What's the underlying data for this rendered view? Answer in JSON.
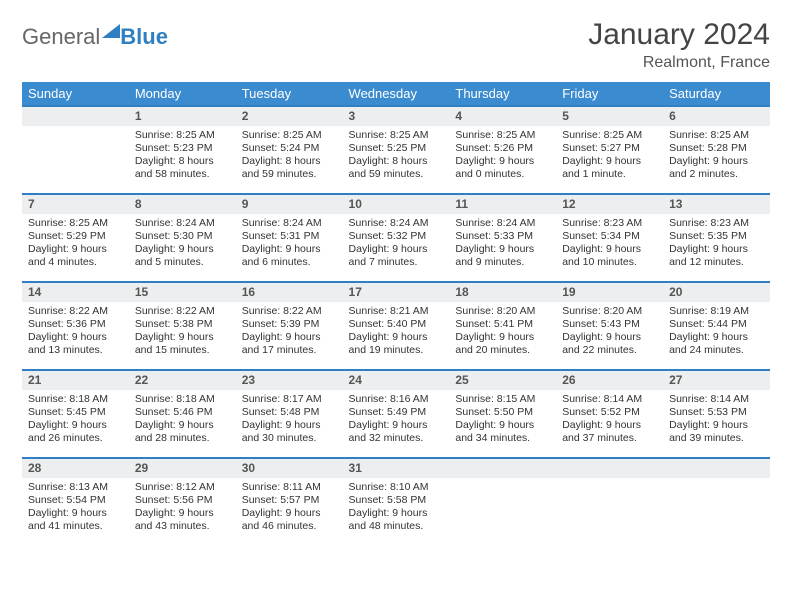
{
  "logo": {
    "text1": "General",
    "text2": "Blue"
  },
  "title": "January 2024",
  "location": "Realmont, France",
  "colors": {
    "header_bg": "#3b8bd0",
    "header_border": "#2f7fc2",
    "daynum_bg": "#eceeef",
    "text": "#333333"
  },
  "weekdays": [
    "Sunday",
    "Monday",
    "Tuesday",
    "Wednesday",
    "Thursday",
    "Friday",
    "Saturday"
  ],
  "weeks": [
    {
      "nums": [
        "",
        "1",
        "2",
        "3",
        "4",
        "5",
        "6"
      ],
      "details": [
        null,
        {
          "sunrise": "Sunrise: 8:25 AM",
          "sunset": "Sunset: 5:23 PM",
          "daylight": "Daylight: 8 hours and 58 minutes."
        },
        {
          "sunrise": "Sunrise: 8:25 AM",
          "sunset": "Sunset: 5:24 PM",
          "daylight": "Daylight: 8 hours and 59 minutes."
        },
        {
          "sunrise": "Sunrise: 8:25 AM",
          "sunset": "Sunset: 5:25 PM",
          "daylight": "Daylight: 8 hours and 59 minutes."
        },
        {
          "sunrise": "Sunrise: 8:25 AM",
          "sunset": "Sunset: 5:26 PM",
          "daylight": "Daylight: 9 hours and 0 minutes."
        },
        {
          "sunrise": "Sunrise: 8:25 AM",
          "sunset": "Sunset: 5:27 PM",
          "daylight": "Daylight: 9 hours and 1 minute."
        },
        {
          "sunrise": "Sunrise: 8:25 AM",
          "sunset": "Sunset: 5:28 PM",
          "daylight": "Daylight: 9 hours and 2 minutes."
        }
      ]
    },
    {
      "nums": [
        "7",
        "8",
        "9",
        "10",
        "11",
        "12",
        "13"
      ],
      "details": [
        {
          "sunrise": "Sunrise: 8:25 AM",
          "sunset": "Sunset: 5:29 PM",
          "daylight": "Daylight: 9 hours and 4 minutes."
        },
        {
          "sunrise": "Sunrise: 8:24 AM",
          "sunset": "Sunset: 5:30 PM",
          "daylight": "Daylight: 9 hours and 5 minutes."
        },
        {
          "sunrise": "Sunrise: 8:24 AM",
          "sunset": "Sunset: 5:31 PM",
          "daylight": "Daylight: 9 hours and 6 minutes."
        },
        {
          "sunrise": "Sunrise: 8:24 AM",
          "sunset": "Sunset: 5:32 PM",
          "daylight": "Daylight: 9 hours and 7 minutes."
        },
        {
          "sunrise": "Sunrise: 8:24 AM",
          "sunset": "Sunset: 5:33 PM",
          "daylight": "Daylight: 9 hours and 9 minutes."
        },
        {
          "sunrise": "Sunrise: 8:23 AM",
          "sunset": "Sunset: 5:34 PM",
          "daylight": "Daylight: 9 hours and 10 minutes."
        },
        {
          "sunrise": "Sunrise: 8:23 AM",
          "sunset": "Sunset: 5:35 PM",
          "daylight": "Daylight: 9 hours and 12 minutes."
        }
      ]
    },
    {
      "nums": [
        "14",
        "15",
        "16",
        "17",
        "18",
        "19",
        "20"
      ],
      "details": [
        {
          "sunrise": "Sunrise: 8:22 AM",
          "sunset": "Sunset: 5:36 PM",
          "daylight": "Daylight: 9 hours and 13 minutes."
        },
        {
          "sunrise": "Sunrise: 8:22 AM",
          "sunset": "Sunset: 5:38 PM",
          "daylight": "Daylight: 9 hours and 15 minutes."
        },
        {
          "sunrise": "Sunrise: 8:22 AM",
          "sunset": "Sunset: 5:39 PM",
          "daylight": "Daylight: 9 hours and 17 minutes."
        },
        {
          "sunrise": "Sunrise: 8:21 AM",
          "sunset": "Sunset: 5:40 PM",
          "daylight": "Daylight: 9 hours and 19 minutes."
        },
        {
          "sunrise": "Sunrise: 8:20 AM",
          "sunset": "Sunset: 5:41 PM",
          "daylight": "Daylight: 9 hours and 20 minutes."
        },
        {
          "sunrise": "Sunrise: 8:20 AM",
          "sunset": "Sunset: 5:43 PM",
          "daylight": "Daylight: 9 hours and 22 minutes."
        },
        {
          "sunrise": "Sunrise: 8:19 AM",
          "sunset": "Sunset: 5:44 PM",
          "daylight": "Daylight: 9 hours and 24 minutes."
        }
      ]
    },
    {
      "nums": [
        "21",
        "22",
        "23",
        "24",
        "25",
        "26",
        "27"
      ],
      "details": [
        {
          "sunrise": "Sunrise: 8:18 AM",
          "sunset": "Sunset: 5:45 PM",
          "daylight": "Daylight: 9 hours and 26 minutes."
        },
        {
          "sunrise": "Sunrise: 8:18 AM",
          "sunset": "Sunset: 5:46 PM",
          "daylight": "Daylight: 9 hours and 28 minutes."
        },
        {
          "sunrise": "Sunrise: 8:17 AM",
          "sunset": "Sunset: 5:48 PM",
          "daylight": "Daylight: 9 hours and 30 minutes."
        },
        {
          "sunrise": "Sunrise: 8:16 AM",
          "sunset": "Sunset: 5:49 PM",
          "daylight": "Daylight: 9 hours and 32 minutes."
        },
        {
          "sunrise": "Sunrise: 8:15 AM",
          "sunset": "Sunset: 5:50 PM",
          "daylight": "Daylight: 9 hours and 34 minutes."
        },
        {
          "sunrise": "Sunrise: 8:14 AM",
          "sunset": "Sunset: 5:52 PM",
          "daylight": "Daylight: 9 hours and 37 minutes."
        },
        {
          "sunrise": "Sunrise: 8:14 AM",
          "sunset": "Sunset: 5:53 PM",
          "daylight": "Daylight: 9 hours and 39 minutes."
        }
      ]
    },
    {
      "nums": [
        "28",
        "29",
        "30",
        "31",
        "",
        "",
        ""
      ],
      "details": [
        {
          "sunrise": "Sunrise: 8:13 AM",
          "sunset": "Sunset: 5:54 PM",
          "daylight": "Daylight: 9 hours and 41 minutes."
        },
        {
          "sunrise": "Sunrise: 8:12 AM",
          "sunset": "Sunset: 5:56 PM",
          "daylight": "Daylight: 9 hours and 43 minutes."
        },
        {
          "sunrise": "Sunrise: 8:11 AM",
          "sunset": "Sunset: 5:57 PM",
          "daylight": "Daylight: 9 hours and 46 minutes."
        },
        {
          "sunrise": "Sunrise: 8:10 AM",
          "sunset": "Sunset: 5:58 PM",
          "daylight": "Daylight: 9 hours and 48 minutes."
        },
        null,
        null,
        null
      ]
    }
  ]
}
